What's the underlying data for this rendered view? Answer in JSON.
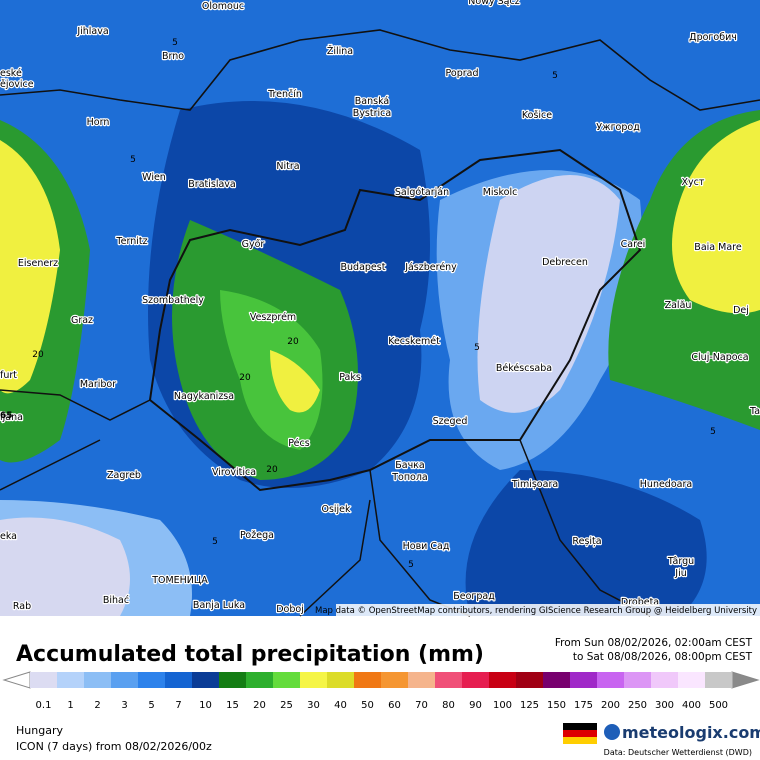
{
  "map": {
    "cities": [
      "Olomouc",
      "Nowy Sącz",
      "Jihlava",
      "Brno",
      "Žilina",
      "Poprad",
      "Дрогобич",
      "eské",
      "ějovice",
      "Trenčín",
      "Banská",
      "Bystrica",
      "Košice",
      "Ужгород",
      "Horn",
      "Nitra",
      "Wien",
      "Bratislava",
      "Salgótarján",
      "Miskolc",
      "Хуст",
      "Ternitz",
      "Győr",
      "Carei",
      "Baia Mare",
      "Eisenerz",
      "Budapest",
      "Jászberény",
      "Debrecen",
      "Graz",
      "Szombathely",
      "Veszprém",
      "Zalău",
      "Dej",
      "Kecskemét",
      "Cluj-Napoca",
      "Maribor",
      "Paks",
      "Békéscsaba",
      "furt",
      "Nagykanizsa",
      "ljana",
      "Szeged",
      "Pécs",
      "Zagreb",
      "Virovitica",
      "Бачка",
      "Топола",
      "Timișoara",
      "Hunedoara",
      "Osijek",
      "eka",
      "Požega",
      "Нови Сад",
      "Reșița",
      "Târgu",
      "Jiu",
      "ТОМЕНИЦА",
      "Bihać",
      "Banja Luka",
      "Doboj",
      "Београд",
      "Drobeta",
      "Rab",
      "Ta"
    ],
    "contour_labels": [
      "5",
      "5",
      "5",
      "20",
      "20",
      "20",
      "20",
      "5",
      "5",
      "5",
      "5",
      "65"
    ],
    "attribution": "Map data © OpenStreetMap contributors, rendering GIScience Research Group @ Heidelberg University"
  },
  "legend": {
    "title": "Accumulated total precipitation (mm)",
    "from": "From Sun 08/02/2026, 02:00am CEST",
    "to": "to Sat 08/08/2026, 08:00pm CEST",
    "levels": [
      {
        "label": "0.1",
        "color": "#dcdcf2"
      },
      {
        "label": "1",
        "color": "#b4d2fa"
      },
      {
        "label": "2",
        "color": "#8cbef5"
      },
      {
        "label": "3",
        "color": "#5aa0f0"
      },
      {
        "label": "5",
        "color": "#2d82eb"
      },
      {
        "label": "7",
        "color": "#1464d2"
      },
      {
        "label": "10",
        "color": "#0a3c96"
      },
      {
        "label": "15",
        "color": "#147d14"
      },
      {
        "label": "20",
        "color": "#2daf2d"
      },
      {
        "label": "25",
        "color": "#64dc3c"
      },
      {
        "label": "30",
        "color": "#f5f546"
      },
      {
        "label": "40",
        "color": "#dcdc28"
      },
      {
        "label": "50",
        "color": "#f07814"
      },
      {
        "label": "60",
        "color": "#f59632"
      },
      {
        "label": "70",
        "color": "#f5b48c"
      },
      {
        "label": "80",
        "color": "#f05078"
      },
      {
        "label": "90",
        "color": "#e61e50"
      },
      {
        "label": "100",
        "color": "#c80014"
      },
      {
        "label": "125",
        "color": "#a00014"
      },
      {
        "label": "150",
        "color": "#78006e"
      },
      {
        "label": "175",
        "color": "#a028c8"
      },
      {
        "label": "200",
        "color": "#c864f0"
      },
      {
        "label": "250",
        "color": "#dc96f5"
      },
      {
        "label": "300",
        "color": "#f0c8fa"
      },
      {
        "label": "400",
        "color": "#fae6ff"
      },
      {
        "label": "500",
        "color": "#c8c8c8"
      }
    ]
  },
  "footer": {
    "region": "Hungary",
    "model": "ICON (7 days)  from  08/02/2026/00z",
    "brand": "meteologix.com",
    "source": "Data: Deutscher Wetterdienst  (DWD)"
  }
}
